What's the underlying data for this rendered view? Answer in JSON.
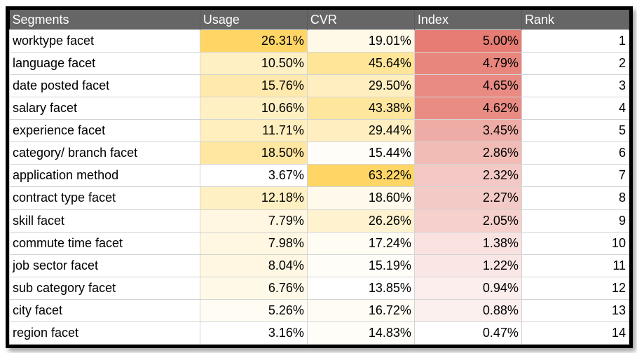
{
  "columns": [
    "Segments",
    "Usage",
    "CVR",
    "Index",
    "Rank"
  ],
  "rows": [
    {
      "segment": "worktype facet",
      "usage": "26.31%",
      "cvr": "19.01%",
      "index": "5.00%",
      "rank": "1",
      "usage_color": "#ffd666",
      "cvr_color": "#fff9e8",
      "index_color": "#e67c73"
    },
    {
      "segment": "language facet",
      "usage": "10.50%",
      "cvr": "45.64%",
      "index": "4.79%",
      "rank": "2",
      "usage_color": "#fff0c3",
      "cvr_color": "#ffe597",
      "index_color": "#e8867e"
    },
    {
      "segment": "date posted facet",
      "usage": "15.76%",
      "cvr": "29.50%",
      "index": "4.65%",
      "rank": "3",
      "usage_color": "#ffe9ad",
      "cvr_color": "#ffefc0",
      "index_color": "#e98b83"
    },
    {
      "segment": "salary facet",
      "usage": "10.66%",
      "cvr": "43.38%",
      "index": "4.62%",
      "rank": "4",
      "usage_color": "#fff0c3",
      "cvr_color": "#ffe69d",
      "index_color": "#e98c84"
    },
    {
      "segment": "experience facet",
      "usage": "11.71%",
      "cvr": "29.44%",
      "index": "3.45%",
      "rank": "5",
      "usage_color": "#ffeebe",
      "cvr_color": "#ffefc0",
      "index_color": "#eeaca6"
    },
    {
      "segment": "category/ branch facet",
      "usage": "18.50%",
      "cvr": "15.44%",
      "index": "2.86%",
      "rank": "6",
      "usage_color": "#ffe6a1",
      "cvr_color": "#fffdf8",
      "index_color": "#f1bbb6"
    },
    {
      "segment": "application method",
      "usage": "3.67%",
      "cvr": "63.22%",
      "index": "2.32%",
      "rank": "7",
      "usage_color": "#ffffff",
      "cvr_color": "#ffd666",
      "index_color": "#f4c9c5"
    },
    {
      "segment": "contract type facet",
      "usage": "12.18%",
      "cvr": "18.60%",
      "index": "2.27%",
      "rank": "8",
      "usage_color": "#fff0c3",
      "cvr_color": "#fffaec",
      "index_color": "#f4cac6"
    },
    {
      "segment": "skill facet",
      "usage": "7.79%",
      "cvr": "26.26%",
      "index": "2.05%",
      "rank": "9",
      "usage_color": "#fff7e1",
      "cvr_color": "#fff2cf",
      "index_color": "#f5d0cd"
    },
    {
      "segment": "commute time facet",
      "usage": "7.98%",
      "cvr": "17.24%",
      "index": "1.38%",
      "rank": "10",
      "usage_color": "#fff7e1",
      "cvr_color": "#fffcf3",
      "index_color": "#f9e2e0"
    },
    {
      "segment": "job sector facet",
      "usage": "8.04%",
      "cvr": "15.19%",
      "index": "1.22%",
      "rank": "11",
      "usage_color": "#fff7e1",
      "cvr_color": "#fffdf8",
      "index_color": "#fae7e5"
    },
    {
      "segment": "sub category facet",
      "usage": "6.76%",
      "cvr": "13.85%",
      "index": "0.94%",
      "rank": "12",
      "usage_color": "#fff9e8",
      "cvr_color": "#ffffff",
      "index_color": "#fbeeed"
    },
    {
      "segment": "city facet",
      "usage": "5.26%",
      "cvr": "16.72%",
      "index": "0.88%",
      "rank": "13",
      "usage_color": "#fffcf3",
      "cvr_color": "#fffcf3",
      "index_color": "#fcf0ef"
    },
    {
      "segment": "region facet",
      "usage": "3.16%",
      "cvr": "14.83%",
      "index": "0.47%",
      "rank": "14",
      "usage_color": "#ffffff",
      "cvr_color": "#fffdf8",
      "index_color": "#ffffff"
    }
  ]
}
